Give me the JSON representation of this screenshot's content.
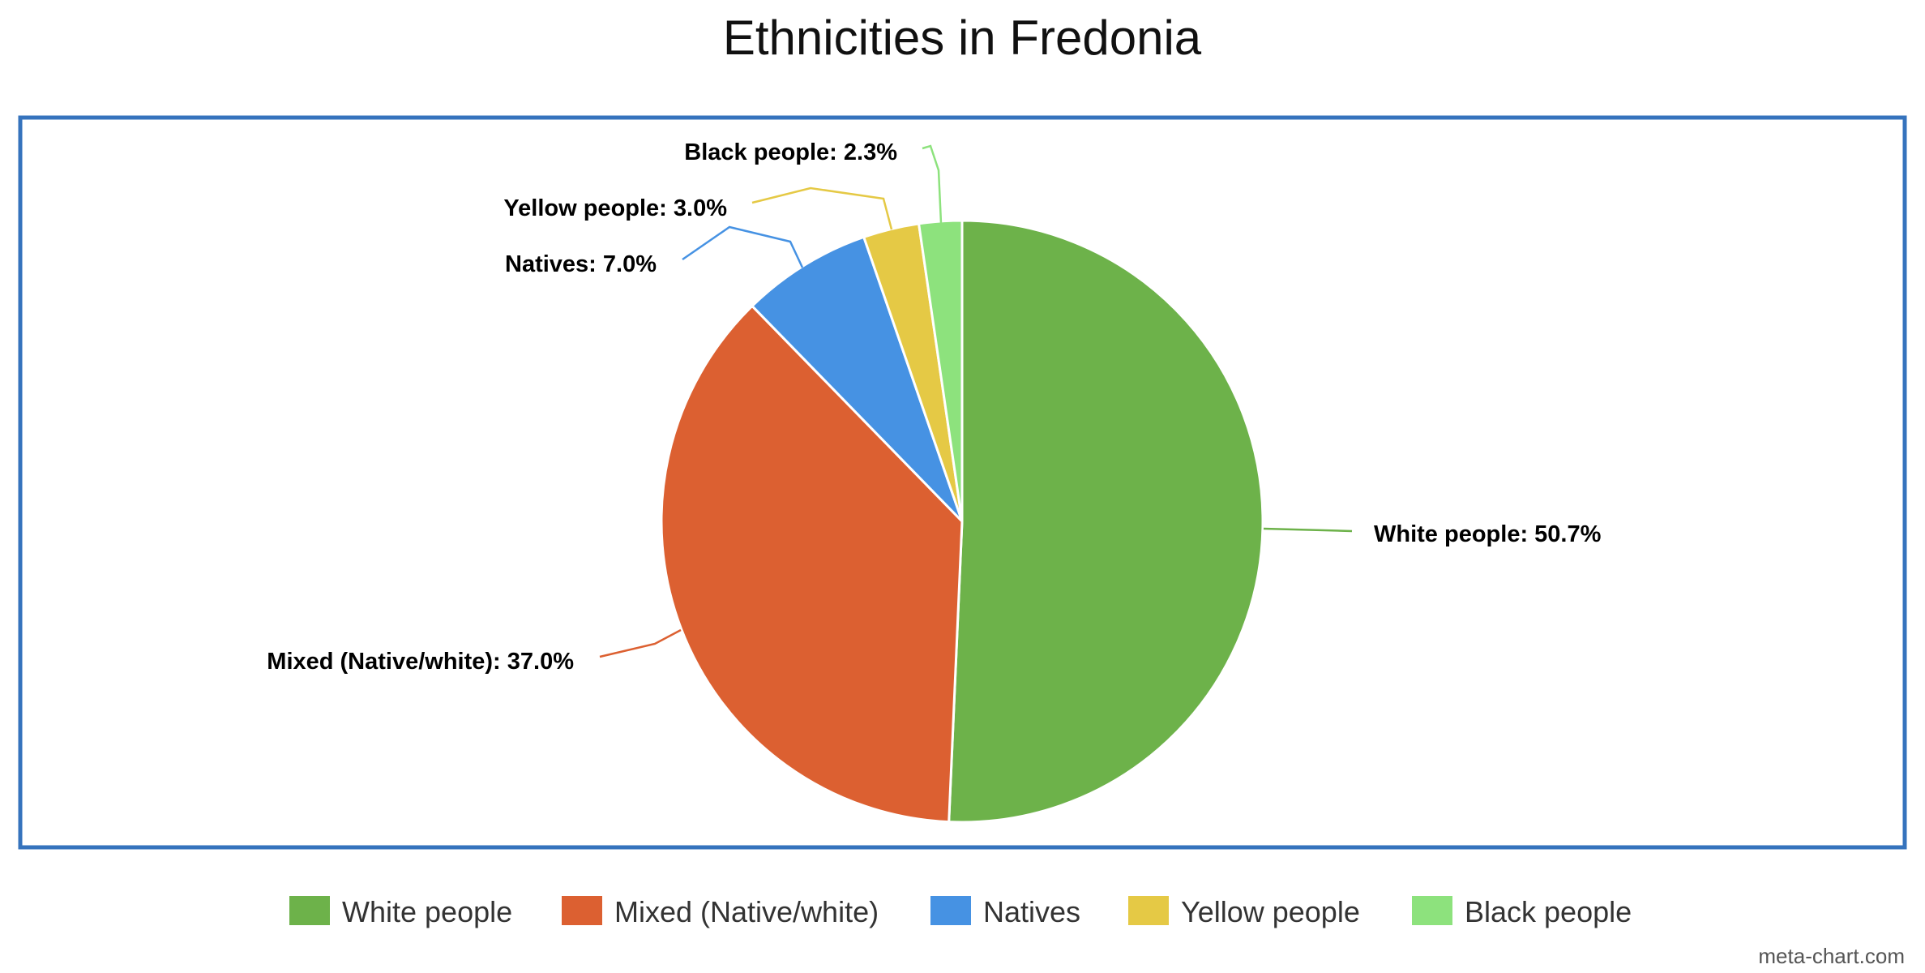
{
  "chart_data": {
    "type": "pie",
    "title": "Ethnicities in Fredonia",
    "slices": [
      {
        "name": "White people",
        "value": 50.7,
        "label": "White people: 50.7%",
        "color": "#6db24a"
      },
      {
        "name": "Mixed (Native/white)",
        "value": 37.0,
        "label": "Mixed (Native/white): 37.0%",
        "color": "#dc6031"
      },
      {
        "name": "Natives",
        "value": 7.0,
        "label": "Natives: 7.0%",
        "color": "#4692e3"
      },
      {
        "name": "Yellow people",
        "value": 3.0,
        "label": "Yellow people: 3.0%",
        "color": "#e5c945"
      },
      {
        "name": "Black people",
        "value": 2.3,
        "label": "Black people: 2.3%",
        "color": "#8de27d"
      }
    ],
    "start_angle": "12 o'clock",
    "direction": "clockwise",
    "legend_position": "bottom",
    "frame_color": "#3573bd"
  },
  "credit": "meta-chart.com"
}
